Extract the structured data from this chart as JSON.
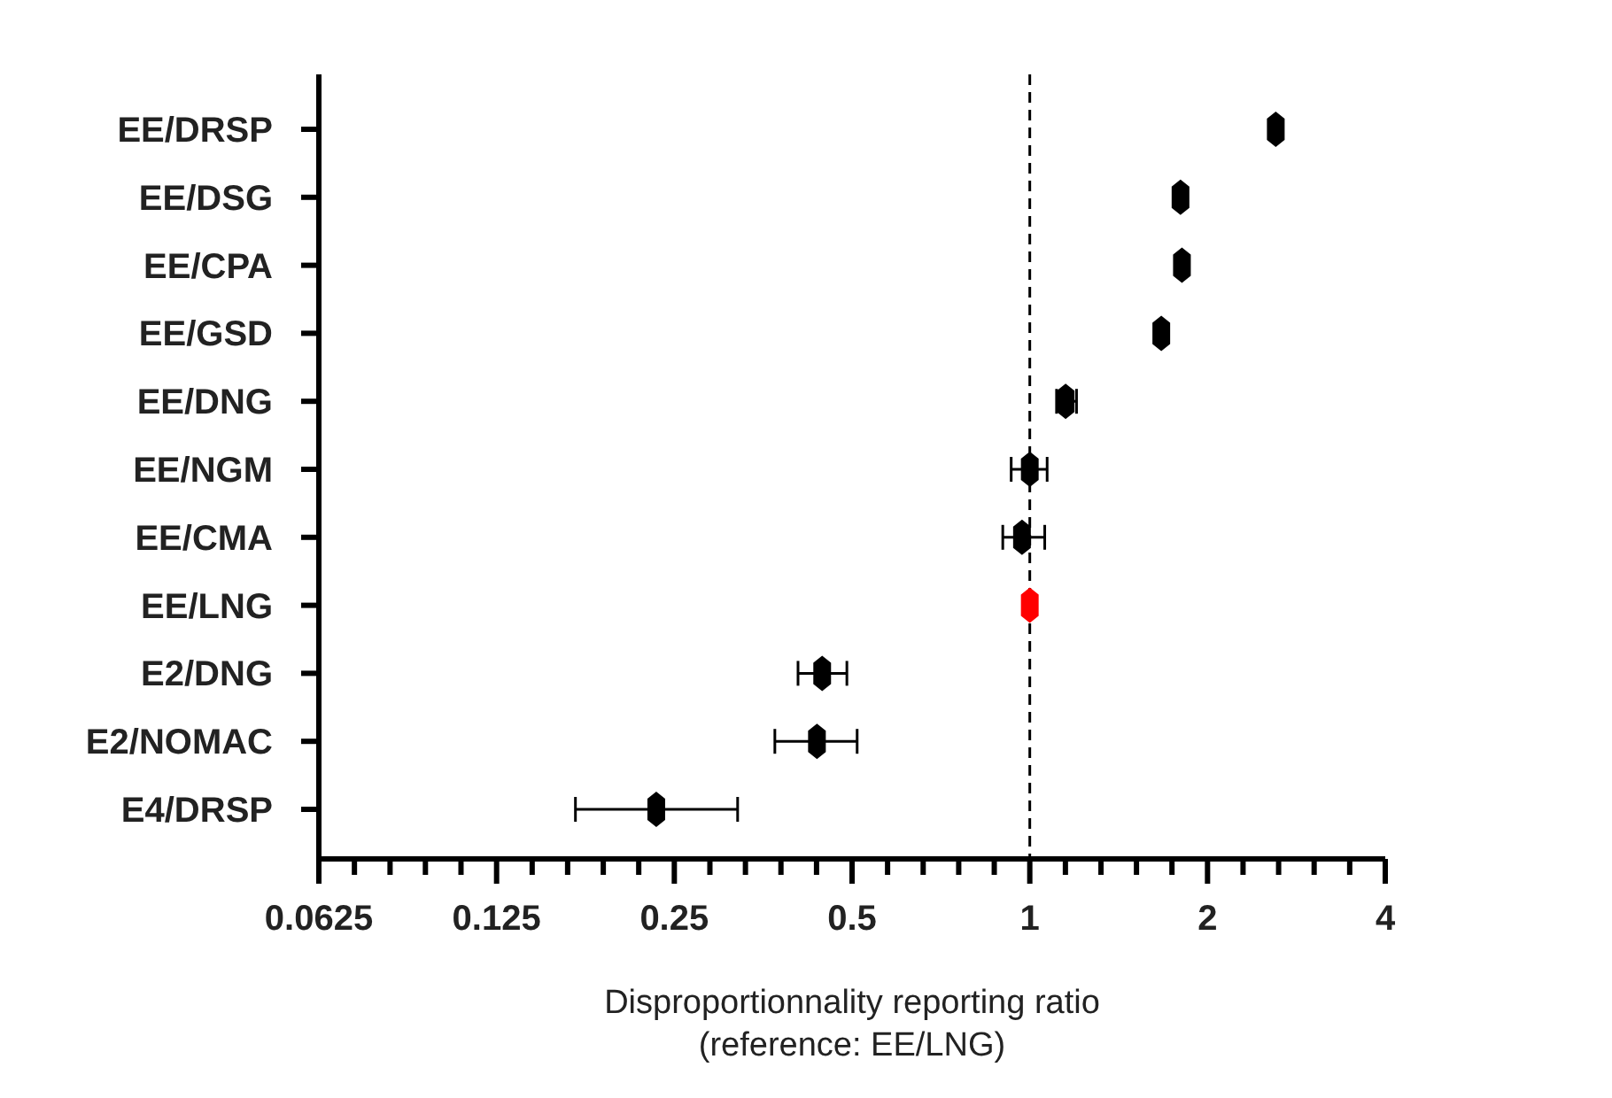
{
  "chart_data": {
    "type": "scatter",
    "orientation": "horizontal",
    "log": "x",
    "categories": [
      "EE/DRSP",
      "EE/DSG",
      "EE/CPA",
      "EE/GSD",
      "EE/DNG",
      "EE/NGM",
      "EE/CMA",
      "EE/LNG",
      "E2/DNG",
      "E2/NOMAC",
      "E4/DRSP"
    ],
    "values": [
      2.61,
      1.8,
      1.81,
      1.67,
      1.15,
      1.0,
      0.97,
      1.0,
      0.445,
      0.436,
      0.233
    ],
    "errors": [
      null,
      null,
      null,
      null,
      [
        1.11,
        1.2
      ],
      [
        0.93,
        1.07
      ],
      [
        0.9,
        1.06
      ],
      null,
      [
        0.405,
        0.49
      ],
      [
        0.37,
        0.51
      ],
      [
        0.17,
        0.32
      ]
    ],
    "colors": [
      "#000000",
      "#000000",
      "#000000",
      "#000000",
      "#000000",
      "#000000",
      "#000000",
      "#ff0000",
      "#000000",
      "#000000",
      "#000000"
    ],
    "marker": "diamond",
    "xlim": [
      0.0625,
      4
    ],
    "xticks": [
      0.0625,
      {
        "value": 0.0718,
        "label": null
      },
      {
        "value": 0.0825,
        "label": null
      },
      {
        "value": 0.0947,
        "label": null
      },
      {
        "value": 0.1088,
        "label": null
      },
      0.125,
      {
        "value": 0.1436,
        "label": null
      },
      {
        "value": 0.1649,
        "label": null
      },
      {
        "value": 0.1895,
        "label": null
      },
      {
        "value": 0.2176,
        "label": null
      },
      0.25,
      {
        "value": 0.2872,
        "label": null
      },
      {
        "value": 0.3299,
        "label": null
      },
      {
        "value": 0.3789,
        "label": null
      },
      {
        "value": 0.4353,
        "label": null
      },
      0.5,
      {
        "value": 0.5743,
        "label": null
      },
      {
        "value": 0.6598,
        "label": null
      },
      {
        "value": 0.7579,
        "label": null
      },
      {
        "value": 0.8706,
        "label": null
      },
      1,
      {
        "value": 1.149,
        "label": null
      },
      {
        "value": 1.32,
        "label": null
      },
      {
        "value": 1.516,
        "label": null
      },
      {
        "value": 1.741,
        "label": null
      },
      2,
      {
        "value": 2.297,
        "label": null
      },
      {
        "value": 2.639,
        "label": null
      },
      {
        "value": 3.031,
        "label": null
      },
      {
        "value": 3.482,
        "label": null
      },
      4
    ],
    "xlabel": "Disproportionnality reporting ratio\n(reference: EE/LNG)",
    "ref_lines": [
      {
        "axis": "x",
        "value": 1,
        "line_style": "dashed",
        "color": "#000000"
      }
    ],
    "grid": false
  }
}
